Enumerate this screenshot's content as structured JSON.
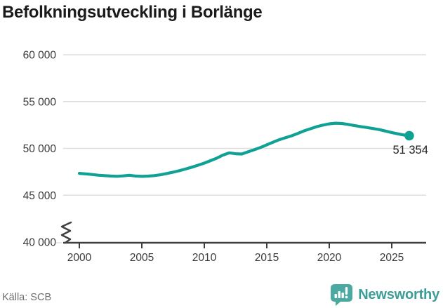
{
  "title": "Befolkningsutveckling i Borlänge",
  "footer": {
    "source": "Källa: SCB",
    "logo_text": "Newsworthy"
  },
  "colors": {
    "line": "#0fa294",
    "end_dot": "#0fa294",
    "grid": "#dedede",
    "axis": "#3f3f3f",
    "axis_text": "#3a3a3a",
    "end_label_text": "#222222",
    "title_text": "#1a1a1a",
    "source_text": "#6e6e6e",
    "logo_teal": "#4aa9a0",
    "logo_text_color": "#3b9d97"
  },
  "chart_data": {
    "type": "line",
    "title": "Befolkningsutveckling i Borlänge",
    "xlabel": "",
    "ylabel": "",
    "ylim": [
      40000,
      60000
    ],
    "grid": true,
    "axis_break_at_y_start": true,
    "x_ticks": [
      2000,
      2005,
      2010,
      2015,
      2020,
      2025
    ],
    "x_tick_labels": [
      "2000",
      "2005",
      "2010",
      "2015",
      "2020",
      "2025"
    ],
    "y_ticks": [
      40000,
      45000,
      50000,
      55000,
      60000
    ],
    "y_tick_labels": [
      "40 000",
      "45 000",
      "50 000",
      "55 000",
      "60 000"
    ],
    "end_label": "51 354",
    "end_value": 51354,
    "series": [
      {
        "name": "Befolkning i Borlänge",
        "points": [
          [
            2000,
            47330
          ],
          [
            2000.5,
            47280
          ],
          [
            2001,
            47210
          ],
          [
            2001.5,
            47140
          ],
          [
            2002,
            47090
          ],
          [
            2002.5,
            47050
          ],
          [
            2003,
            47020
          ],
          [
            2003.5,
            47060
          ],
          [
            2004,
            47130
          ],
          [
            2004.5,
            47050
          ],
          [
            2005,
            47010
          ],
          [
            2005.5,
            47040
          ],
          [
            2006,
            47090
          ],
          [
            2006.5,
            47180
          ],
          [
            2007,
            47320
          ],
          [
            2007.5,
            47460
          ],
          [
            2008,
            47620
          ],
          [
            2008.5,
            47800
          ],
          [
            2009,
            47990
          ],
          [
            2009.5,
            48200
          ],
          [
            2010,
            48430
          ],
          [
            2010.5,
            48690
          ],
          [
            2011,
            48960
          ],
          [
            2011.5,
            49290
          ],
          [
            2012,
            49520
          ],
          [
            2012.5,
            49430
          ],
          [
            2013,
            49400
          ],
          [
            2013.5,
            49630
          ],
          [
            2014,
            49860
          ],
          [
            2014.5,
            50100
          ],
          [
            2015,
            50380
          ],
          [
            2015.5,
            50660
          ],
          [
            2016,
            50930
          ],
          [
            2016.5,
            51140
          ],
          [
            2017,
            51350
          ],
          [
            2017.5,
            51600
          ],
          [
            2018,
            51880
          ],
          [
            2018.5,
            52100
          ],
          [
            2019,
            52320
          ],
          [
            2019.5,
            52490
          ],
          [
            2020,
            52620
          ],
          [
            2020.5,
            52690
          ],
          [
            2021,
            52660
          ],
          [
            2021.5,
            52560
          ],
          [
            2022,
            52440
          ],
          [
            2022.5,
            52330
          ],
          [
            2023,
            52230
          ],
          [
            2023.5,
            52120
          ],
          [
            2024,
            52010
          ],
          [
            2024.5,
            51850
          ],
          [
            2025,
            51690
          ],
          [
            2025.5,
            51550
          ],
          [
            2026,
            51420
          ],
          [
            2026.4,
            51354
          ]
        ]
      }
    ]
  }
}
